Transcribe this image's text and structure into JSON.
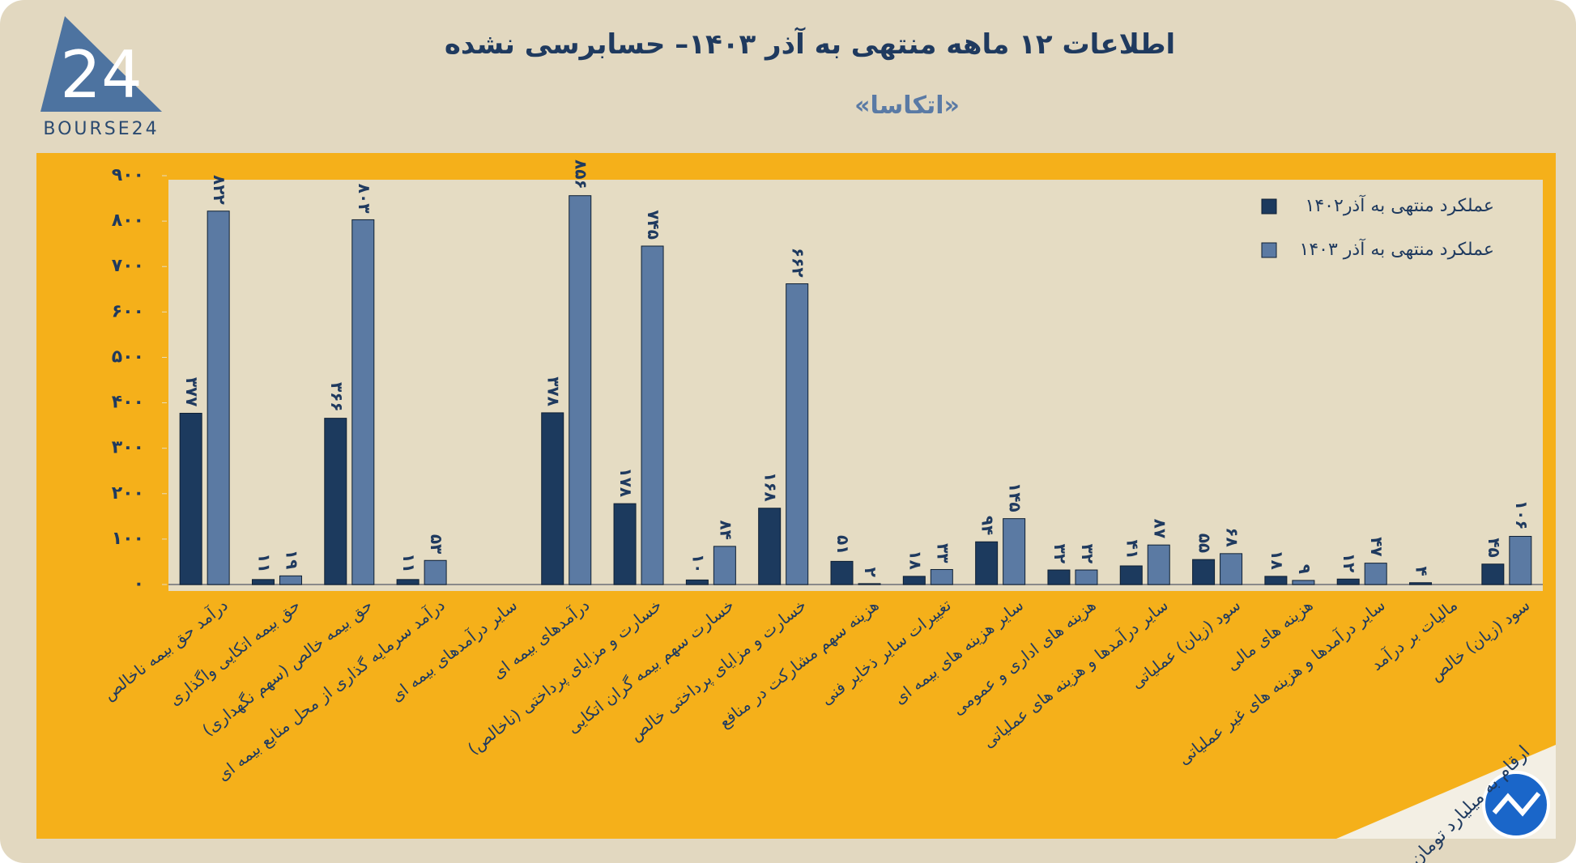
{
  "logo": {
    "mark": "24",
    "text": "BOURSE24"
  },
  "chart_data": {
    "type": "bar",
    "title": "اطلاعات ۱۲ ماهه منتهی به آذر ۱۴۰۳– حسابرسی نشده",
    "subtitle": "«اتکاسا»",
    "note": "ارقام به میلیارد تومان",
    "categories": [
      "درآمد حق بیمه ناخالص",
      "حق بیمه اتکایی واگذاری",
      "حق بیمه خالص (سهم نگهداری)",
      "درآمد سرمایه گذاری از محل منابع بیمه ای",
      "سایر درآمدهای بیمه ای",
      "درآمدهای بیمه ای",
      "خسارت و مزایای پرداختی (ناخالص)",
      "خسارت سهم بیمه گران اتکایی",
      "خسارت و مزایای پرداختی خالص",
      "هزینه سهم مشارکت در منافع",
      "تغییرات سایر ذخایر فنی",
      "سایر هزینه های بیمه ای",
      "هزینه های اداری و عمومی",
      "سایر درآمدها و هزینه های عملیاتی",
      "سود (زیان) عملیاتی",
      "هزینه های مالی",
      "سایر درآمدها و هزینه های غیر عملیاتی",
      "مالیات بر درآمد",
      "سود (زیان) خالص"
    ],
    "series": [
      {
        "name": "عملکرد منتهی به آذر۱۴۰۲",
        "color": "#1c3a5e",
        "values": [
          377,
          11,
          366,
          11,
          null,
          378,
          178,
          10,
          168,
          51,
          18,
          94,
          32,
          41,
          55,
          18,
          12,
          4,
          45
        ],
        "value_labels": [
          "۳۷۷",
          "۱۱",
          "۳۶۶",
          "۱۱",
          null,
          "۳۷۸",
          "۱۷۸",
          "۱۰",
          "۱۶۸",
          "۵۱",
          "۱۸",
          "۹۴",
          "۳۲",
          "۴۱",
          "۵۵",
          "۱۸",
          "۱۲",
          "۴",
          "۴۵"
        ]
      },
      {
        "name": "عملکرد منتهی به آذر ۱۴۰۳",
        "color": "#5b7aa3",
        "values": [
          822,
          19,
          803,
          53,
          null,
          856,
          745,
          84,
          662,
          2,
          33,
          145,
          32,
          87,
          68,
          9,
          47,
          null,
          106
        ],
        "value_labels": [
          "۸۲۲",
          "۱۹",
          "۸۰۳",
          "۵۳",
          null,
          "۸۵۶",
          "۷۴۵",
          "۸۴",
          "۶۶۲",
          "۲",
          "۳۳",
          "۱۴۵",
          "۳۲",
          "۸۷",
          "۶۸",
          "۹",
          "۴۷",
          null,
          "۱۰۶"
        ]
      }
    ],
    "ylim": [
      0,
      900
    ],
    "yticks": [
      {
        "value": 0,
        "label": "۰"
      },
      {
        "value": 100,
        "label": "۱۰۰"
      },
      {
        "value": 200,
        "label": "۲۰۰"
      },
      {
        "value": 300,
        "label": "۳۰۰"
      },
      {
        "value": 400,
        "label": "۴۰۰"
      },
      {
        "value": 500,
        "label": "۵۰۰"
      },
      {
        "value": 600,
        "label": "۶۰۰"
      },
      {
        "value": 700,
        "label": "۷۰۰"
      },
      {
        "value": 800,
        "label": "۸۰۰"
      },
      {
        "value": 900,
        "label": "۹۰۰"
      }
    ],
    "grid": false,
    "legend": "top-right"
  }
}
